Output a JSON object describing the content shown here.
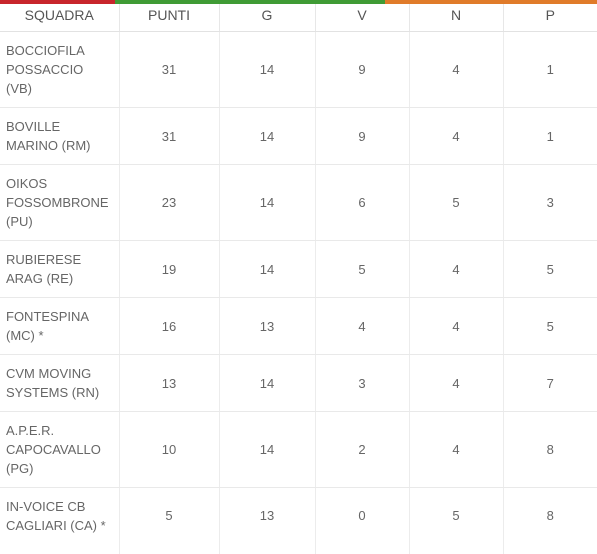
{
  "colors": {
    "accent_red": "#c8252c",
    "accent_green": "#3f9b35",
    "accent_orange": "#e07b2a"
  },
  "header": {
    "squadra": "SQUADRA",
    "punti": "PUNTI",
    "g": "G",
    "v": "V",
    "n": "N",
    "p": "P"
  },
  "rows": [
    {
      "team_l1": "BOCCIOFILA",
      "team_l2": "POSSACCIO",
      "team_l3": "(VB)",
      "punti": "31",
      "g": "14",
      "v": "9",
      "n": "4",
      "p": "1"
    },
    {
      "team_l1": "BOVILLE",
      "team_l2": "MARINO (RM)",
      "team_l3": "",
      "punti": "31",
      "g": "14",
      "v": "9",
      "n": "4",
      "p": "1"
    },
    {
      "team_l1": "OIKOS",
      "team_l2": "FOSSOMBRONE",
      "team_l3": "(PU)",
      "punti": "23",
      "g": "14",
      "v": "6",
      "n": "5",
      "p": "3"
    },
    {
      "team_l1": "RUBIERESE",
      "team_l2": "ARAG (RE)",
      "team_l3": "",
      "punti": "19",
      "g": "14",
      "v": "5",
      "n": "4",
      "p": "5"
    },
    {
      "team_l1": "FONTESPINA",
      "team_l2": "(MC) *",
      "team_l3": "",
      "punti": "16",
      "g": "13",
      "v": "4",
      "n": "4",
      "p": "5"
    },
    {
      "team_l1": "CVM MOVING",
      "team_l2": "SYSTEMS (RN)",
      "team_l3": "",
      "punti": "13",
      "g": "14",
      "v": "3",
      "n": "4",
      "p": "7"
    },
    {
      "team_l1": "A.P.E.R.",
      "team_l2": "CAPOCAVALLO",
      "team_l3": "(PG)",
      "punti": "10",
      "g": "14",
      "v": "2",
      "n": "4",
      "p": "8"
    },
    {
      "team_l1": "IN-VOICE CB",
      "team_l2": "CAGLIARI (CA) *",
      "team_l3": "",
      "punti": "5",
      "g": "13",
      "v": "0",
      "n": "5",
      "p": "8"
    }
  ]
}
